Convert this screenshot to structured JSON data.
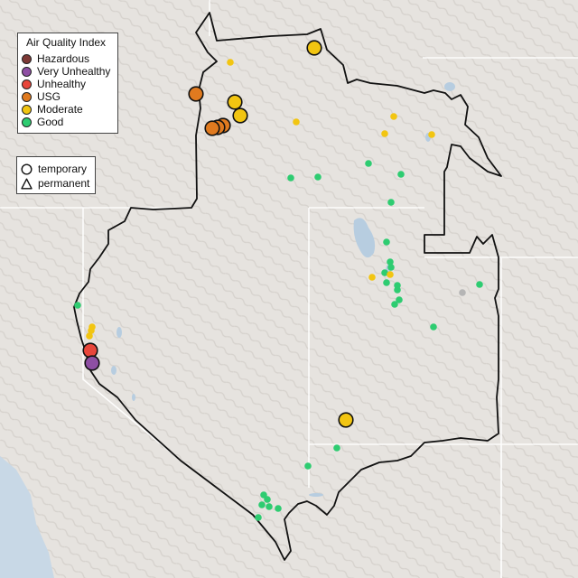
{
  "legend": {
    "title": "Air Quality Index",
    "categories": [
      {
        "label": "Hazardous",
        "color": "#7e3a36"
      },
      {
        "label": "Very Unhealthy",
        "color": "#8e4fa3"
      },
      {
        "label": "Unhealthy",
        "color": "#e8463b"
      },
      {
        "label": "USG",
        "color": "#e07a1f"
      },
      {
        "label": "Moderate",
        "color": "#f2c511"
      },
      {
        "label": "Good",
        "color": "#2ecc71"
      }
    ]
  },
  "monitor_types": {
    "temporary": "temporary",
    "permanent": "permanent"
  },
  "colors": {
    "land": "#e6e3df",
    "water": "#b7cde0",
    "ocean": "#c8d8e6",
    "region_border": "#111111",
    "state_border": "#ffffff",
    "no_data": "#b5b5b5"
  },
  "monitors": [
    {
      "aqi": "Moderate",
      "type": "temporary"
    },
    {
      "aqi": "USG",
      "type": "temporary"
    },
    {
      "aqi": "Moderate",
      "type": "temporary"
    },
    {
      "aqi": "Moderate",
      "type": "temporary"
    },
    {
      "aqi": "USG",
      "type": "temporary"
    },
    {
      "aqi": "USG",
      "type": "temporary"
    },
    {
      "aqi": "USG",
      "type": "temporary"
    },
    {
      "aqi": "Unhealthy",
      "type": "temporary"
    },
    {
      "aqi": "Very Unhealthy",
      "type": "temporary"
    },
    {
      "aqi": "Moderate",
      "type": "temporary"
    },
    {
      "aqi": "Moderate",
      "type": "permanent"
    },
    {
      "aqi": "Moderate",
      "type": "permanent"
    },
    {
      "aqi": "Moderate",
      "type": "permanent"
    },
    {
      "aqi": "Moderate",
      "type": "permanent"
    },
    {
      "aqi": "Moderate",
      "type": "permanent"
    },
    {
      "aqi": "Good",
      "type": "permanent"
    },
    {
      "aqi": "Good",
      "type": "permanent"
    },
    {
      "aqi": "Good",
      "type": "permanent"
    },
    {
      "aqi": "Good",
      "type": "permanent"
    },
    {
      "aqi": "Good",
      "type": "permanent"
    },
    {
      "aqi": "Good",
      "type": "permanent"
    },
    {
      "aqi": "Good",
      "type": "permanent"
    },
    {
      "aqi": "Good",
      "type": "permanent"
    },
    {
      "aqi": "Good",
      "type": "permanent"
    },
    {
      "aqi": "Moderate",
      "type": "permanent"
    },
    {
      "aqi": "Moderate",
      "type": "permanent"
    },
    {
      "aqi": "Good",
      "type": "permanent"
    },
    {
      "aqi": "Good",
      "type": "permanent"
    },
    {
      "aqi": "Good",
      "type": "permanent"
    },
    {
      "aqi": "No Data",
      "type": "permanent"
    },
    {
      "aqi": "Good",
      "type": "permanent"
    },
    {
      "aqi": "Good",
      "type": "permanent"
    },
    {
      "aqi": "Good",
      "type": "permanent"
    },
    {
      "aqi": "Good",
      "type": "permanent"
    },
    {
      "aqi": "Moderate",
      "type": "permanent"
    },
    {
      "aqi": "Moderate",
      "type": "permanent"
    },
    {
      "aqi": "Moderate",
      "type": "permanent"
    },
    {
      "aqi": "Good",
      "type": "permanent"
    },
    {
      "aqi": "Good",
      "type": "permanent"
    },
    {
      "aqi": "Good",
      "type": "permanent"
    },
    {
      "aqi": "Good",
      "type": "permanent"
    },
    {
      "aqi": "Good",
      "type": "permanent"
    },
    {
      "aqi": "Good",
      "type": "permanent"
    },
    {
      "aqi": "Good",
      "type": "permanent"
    },
    {
      "aqi": "Good",
      "type": "permanent"
    },
    {
      "aqi": "Good",
      "type": "permanent"
    }
  ]
}
